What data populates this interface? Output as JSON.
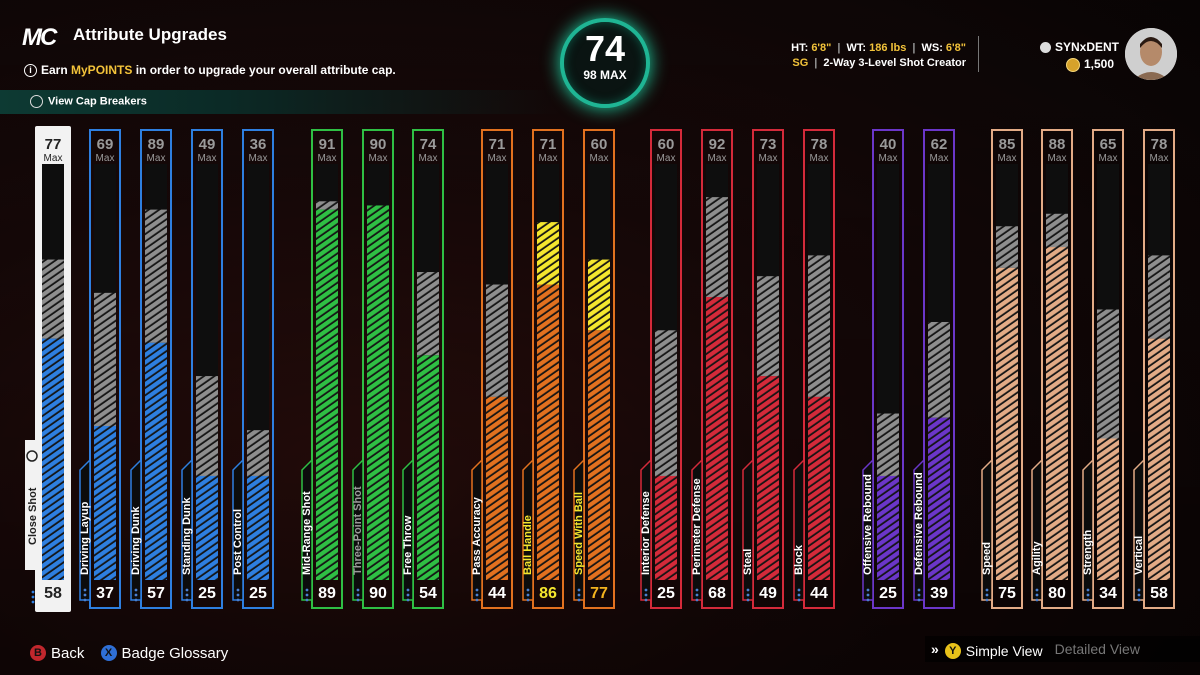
{
  "header": {
    "logo": "MC",
    "title": "Attribute Upgrades",
    "info_prefix": "Earn ",
    "info_highlight": "MyPOINTS",
    "info_suffix": " in order to upgrade your overall attribute cap.",
    "cap_breakers_label": "View Cap Breakers"
  },
  "overall": {
    "value": "74",
    "max_label": "98 MAX"
  },
  "bio": {
    "ht_label": "HT:",
    "ht": "6'8\"",
    "wt_label": "WT:",
    "wt": "186 lbs",
    "ws_label": "WS:",
    "ws": "6'8\"",
    "position": "SG",
    "archetype": "2-Way 3-Level Shot Creator"
  },
  "user": {
    "name": "SYNxDENT",
    "currency": "1,500"
  },
  "max_label": "Max",
  "colors": {
    "blue": "#2e7fe0",
    "green": "#2fbf44",
    "orange": "#e2711f",
    "red": "#d42a3a",
    "purple": "#6b36c9",
    "tan": "#e3ab86",
    "gray_stripe": "#8e8e8e",
    "yellow": "#f4e62e"
  },
  "attributes": [
    {
      "name": "Close Shot",
      "current": 58,
      "cap": 77,
      "group": "blue",
      "selected": true
    },
    {
      "name": "Driving Layup",
      "current": 37,
      "cap": 69,
      "group": "blue"
    },
    {
      "name": "Driving Dunk",
      "current": 57,
      "cap": 89,
      "group": "blue"
    },
    {
      "name": "Standing Dunk",
      "current": 25,
      "cap": 49,
      "group": "blue"
    },
    {
      "name": "Post Control",
      "current": 25,
      "cap": 36,
      "group": "blue"
    },
    {
      "name": "Mid-Range Shot",
      "current": 89,
      "cap": 91,
      "group": "green"
    },
    {
      "name": "Three-Point Shot",
      "current": 90,
      "cap": 90,
      "group": "green"
    },
    {
      "name": "Free Throw",
      "current": 54,
      "cap": 74,
      "group": "green"
    },
    {
      "name": "Pass Accuracy",
      "current": 44,
      "cap": 71,
      "group": "orange"
    },
    {
      "name": "Ball Handle",
      "current": 86,
      "cap": 71,
      "group": "orange",
      "boosted": true
    },
    {
      "name": "Speed With Ball",
      "current": 77,
      "cap": 60,
      "group": "orange",
      "boosted": true
    },
    {
      "name": "Interior Defense",
      "current": 25,
      "cap": 60,
      "group": "red"
    },
    {
      "name": "Perimeter Defense",
      "current": 68,
      "cap": 92,
      "group": "red"
    },
    {
      "name": "Steal",
      "current": 49,
      "cap": 73,
      "group": "red"
    },
    {
      "name": "Block",
      "current": 44,
      "cap": 78,
      "group": "red"
    },
    {
      "name": "Offensive Rebound",
      "current": 25,
      "cap": 40,
      "group": "purple"
    },
    {
      "name": "Defensive Rebound",
      "current": 39,
      "cap": 62,
      "group": "purple"
    },
    {
      "name": "Speed",
      "current": 75,
      "cap": 85,
      "group": "tan"
    },
    {
      "name": "Agility",
      "current": 80,
      "cap": 88,
      "group": "tan"
    },
    {
      "name": "Strength",
      "current": 34,
      "cap": 65,
      "group": "tan"
    },
    {
      "name": "Vertical",
      "current": 58,
      "cap": 78,
      "group": "tan"
    }
  ],
  "footer": {
    "back_glyph": "B",
    "back_label": "Back",
    "glossary_glyph": "X",
    "glossary_label": "Badge Glossary",
    "simple_glyph": "Y",
    "simple_label": "Simple View",
    "detailed_label": "Detailed View",
    "chevrons": "»"
  }
}
